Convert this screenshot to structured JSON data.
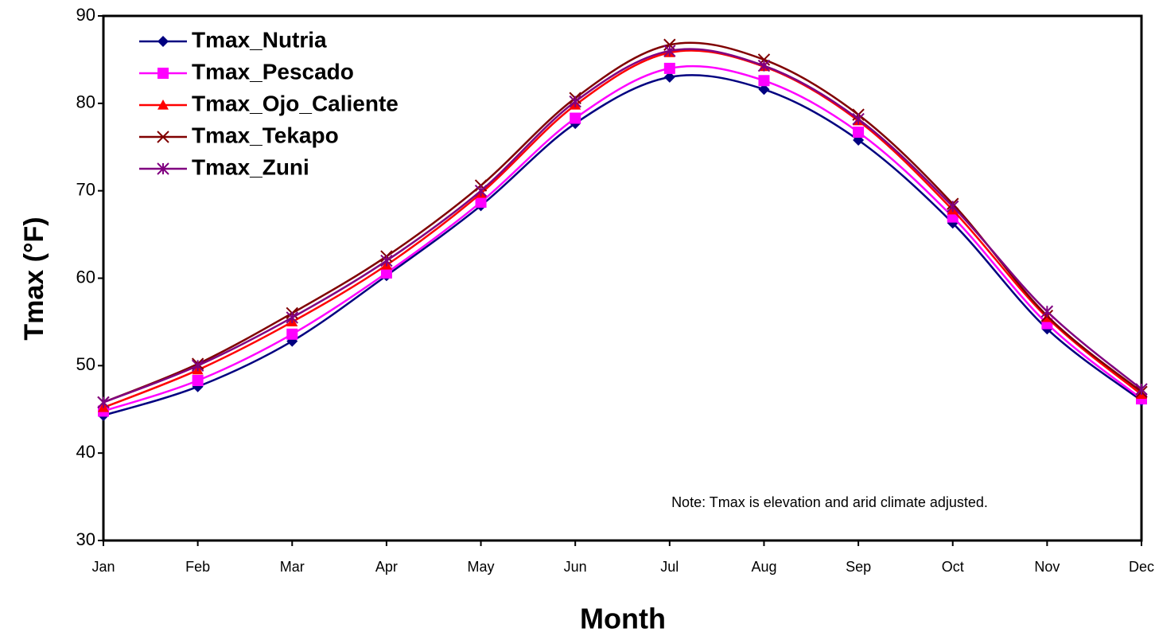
{
  "chart_data": {
    "type": "line",
    "title": null,
    "x_label": "Month",
    "y_label": "Tmax (°F)",
    "annotation": "Note: Tmax is elevation and arid climate adjusted.",
    "categories": [
      "Jan",
      "Feb",
      "Mar",
      "Apr",
      "May",
      "Jun",
      "Jul",
      "Aug",
      "Sep",
      "Oct",
      "Nov",
      "Dec"
    ],
    "series": [
      {
        "name": "Tmax_Nutria",
        "color": "#000080",
        "marker": "diamond",
        "values": [
          44.3,
          47.6,
          52.8,
          60.3,
          68.3,
          77.7,
          83.0,
          81.6,
          75.8,
          66.3,
          54.2,
          46.0
        ]
      },
      {
        "name": "Tmax_Pescado",
        "color": "#FF00FF",
        "marker": "square",
        "values": [
          44.8,
          48.3,
          53.6,
          60.6,
          68.7,
          78.3,
          84.0,
          82.6,
          76.7,
          67.0,
          54.8,
          46.2
        ]
      },
      {
        "name": "Tmax_Ojo_Caliente",
        "color": "#FF0000",
        "marker": "triangle",
        "values": [
          45.2,
          49.5,
          55.0,
          61.5,
          69.7,
          79.8,
          85.8,
          84.2,
          78.0,
          67.8,
          55.5,
          46.7
        ]
      },
      {
        "name": "Tmax_Tekapo",
        "color": "#800000",
        "marker": "x",
        "values": [
          45.8,
          50.2,
          56.0,
          62.5,
          70.6,
          80.6,
          86.7,
          85.0,
          78.7,
          68.5,
          55.7,
          47.0
        ]
      },
      {
        "name": "Tmax_Zuni",
        "color": "#800080",
        "marker": "star",
        "values": [
          45.8,
          50.0,
          55.5,
          62.0,
          70.0,
          80.2,
          86.0,
          84.3,
          78.2,
          68.2,
          56.2,
          47.3
        ]
      }
    ],
    "ylim": [
      30,
      90
    ],
    "yticks": [
      30,
      40,
      50,
      60,
      70,
      80,
      90
    ],
    "grid": false,
    "legend": "top-left",
    "smooth": true
  }
}
